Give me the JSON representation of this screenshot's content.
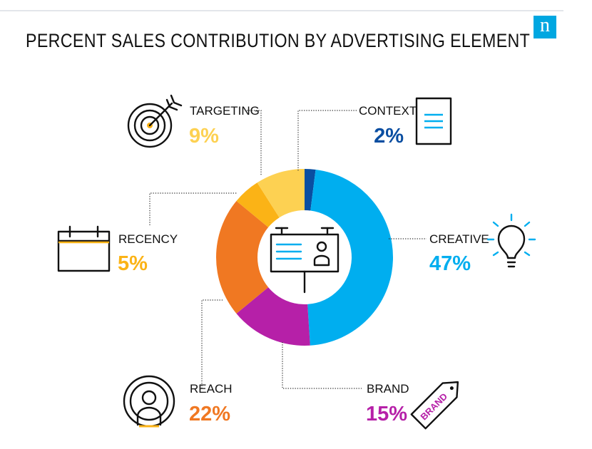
{
  "header": {
    "title": "PERCENT SALES CONTRIBUTION BY ADVERTISING ELEMENT",
    "logo_letter": "n"
  },
  "colors": {
    "context": "#0a4ea1",
    "creative": "#00aeef",
    "brand": "#b620a8",
    "reach": "#f07822",
    "recency": "#fbb316",
    "targeting": "#fdd152",
    "text": "#111111",
    "logo": "#00a7e1"
  },
  "icons": {
    "center": "billboard-icon",
    "context": "document-icon",
    "creative": "lightbulb-icon",
    "brand": "tag-icon",
    "reach": "broadcast-person-icon",
    "recency": "calendar-icon",
    "targeting": "target-arrow-icon"
  },
  "icon_text": {
    "brand_tag": "BRAND"
  },
  "labels": {
    "context": {
      "name": "CONTEXT",
      "pct": "2%"
    },
    "creative": {
      "name": "CREATIVE",
      "pct": "47%"
    },
    "brand": {
      "name": "BRAND",
      "pct": "15%"
    },
    "reach": {
      "name": "REACH",
      "pct": "22%"
    },
    "recency": {
      "name": "RECENCY",
      "pct": "5%"
    },
    "targeting": {
      "name": "TARGETING",
      "pct": "9%"
    }
  },
  "chart_data": {
    "type": "pie",
    "title": "PERCENT SALES CONTRIBUTION BY ADVERTISING ELEMENT",
    "slices": [
      {
        "label": "CONTEXT",
        "value": 2,
        "color": "#0a4ea1"
      },
      {
        "label": "CREATIVE",
        "value": 47,
        "color": "#00aeef"
      },
      {
        "label": "BRAND",
        "value": 15,
        "color": "#b620a8"
      },
      {
        "label": "REACH",
        "value": 22,
        "color": "#f07822"
      },
      {
        "label": "RECENCY",
        "value": 5,
        "color": "#fbb316"
      },
      {
        "label": "TARGETING",
        "value": 9,
        "color": "#fdd152"
      }
    ],
    "donut": true,
    "start": "top",
    "direction": "clockwise"
  }
}
